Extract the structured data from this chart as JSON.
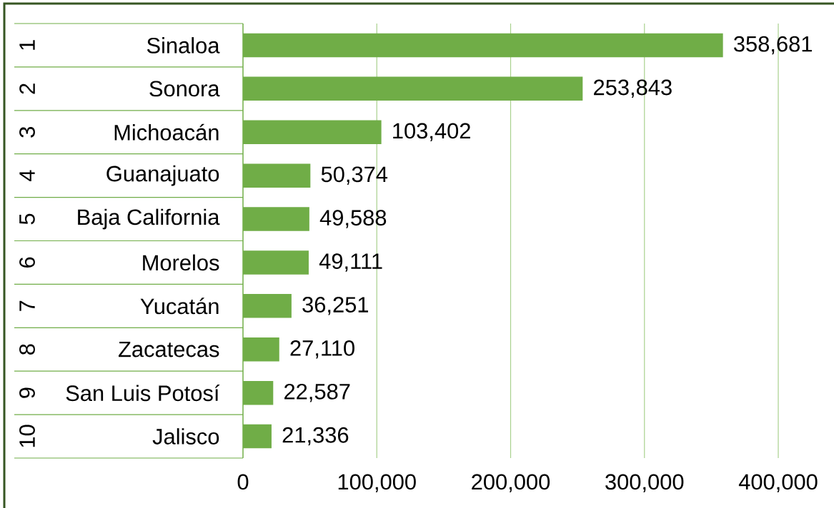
{
  "chart_data": {
    "type": "bar",
    "orientation": "horizontal",
    "categories": [
      "Sinaloa",
      "Sonora",
      "Michoacán",
      "Guanajuato",
      "Baja California",
      "Morelos",
      "Yucatán",
      "Zacatecas",
      "San Luis Potosí",
      "Jalisco"
    ],
    "values": [
      358681,
      253843,
      103402,
      50374,
      49588,
      49111,
      36251,
      27110,
      22587,
      21336
    ],
    "value_labels": [
      "358,681",
      "253,843",
      "103,402",
      "50,374",
      "49,588",
      "49,111",
      "36,251",
      "27,110",
      "22,587",
      "21,336"
    ],
    "color": "#70ad47",
    "xlim": [
      0,
      400000
    ],
    "xticks": [
      0,
      {
        "value": 100000,
        "label": "100,000"
      },
      {
        "value": 200000,
        "label": "200,000"
      },
      {
        "value": 300000,
        "label": "300,000"
      },
      {
        "value": 400000,
        "label": "400,000"
      }
    ],
    "grid": "x",
    "annotations": [
      "1",
      "2",
      "3",
      "4",
      "5",
      "6",
      "7",
      "8",
      "9",
      "10"
    ]
  }
}
